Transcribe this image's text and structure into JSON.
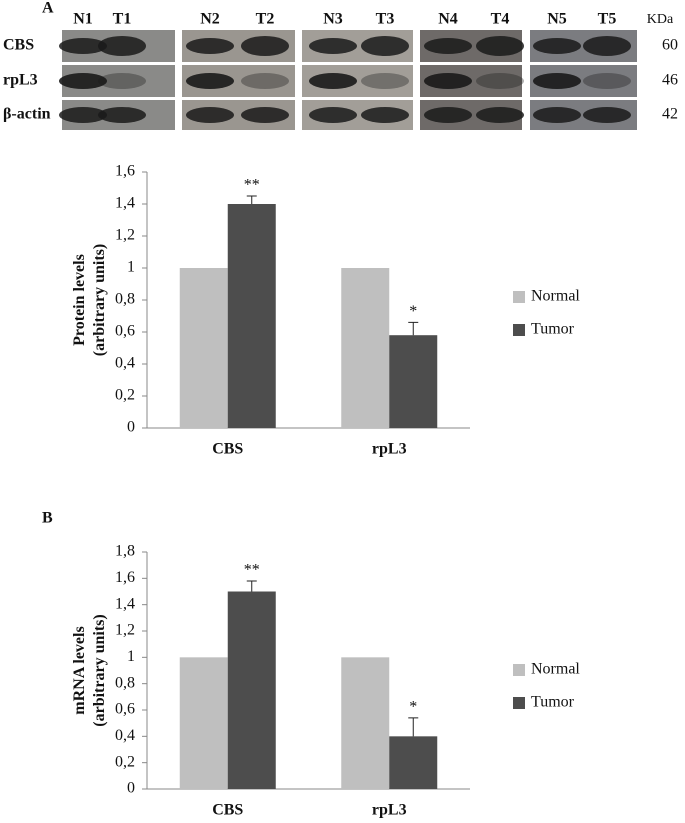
{
  "panel_labels": [
    "A",
    "B"
  ],
  "blot": {
    "lanes": [
      "N1",
      "T1",
      "N2",
      "T2",
      "N3",
      "T3",
      "N4",
      "T4",
      "N5",
      "T5"
    ],
    "rows": [
      "CBS",
      "rpL3",
      "β-actin"
    ],
    "unit": "KDa",
    "sizes": [
      "60",
      "46",
      "42"
    ]
  },
  "chart_data": [
    {
      "type": "bar",
      "ylabel": [
        "Protein levels",
        "(arbitrary units)"
      ],
      "categories": [
        "CBS",
        "rpL3"
      ],
      "series": [
        {
          "name": "Normal",
          "color": "#bfbfbf",
          "values": [
            1,
            1
          ]
        },
        {
          "name": "Tumor",
          "color": "#4d4d4d",
          "values": [
            1.4,
            0.58
          ],
          "errors": [
            0.05,
            0.08
          ],
          "annotations": [
            "**",
            "*"
          ]
        }
      ],
      "ylim": [
        0,
        1.6
      ],
      "yticks": [
        0,
        {
          "value": 0.2,
          "label": "0,2"
        },
        {
          "value": 0.4,
          "label": "0,4"
        },
        {
          "value": 0.6,
          "label": "0,6"
        },
        {
          "value": 0.8,
          "label": "0,8"
        },
        1,
        {
          "value": 1.2,
          "label": "1,2"
        },
        {
          "value": 1.4,
          "label": "1,4"
        },
        {
          "value": 1.6,
          "label": "1,6"
        }
      ],
      "legend": "right"
    },
    {
      "type": "bar",
      "ylabel": [
        "mRNA levels",
        "(arbitrary units)"
      ],
      "categories": [
        "CBS",
        "rpL3"
      ],
      "series": [
        {
          "name": "Normal",
          "color": "#bfbfbf",
          "values": [
            1,
            1
          ]
        },
        {
          "name": "Tumor",
          "color": "#4d4d4d",
          "values": [
            1.5,
            0.4
          ],
          "errors": [
            0.08,
            0.14
          ],
          "annotations": [
            "**",
            "*"
          ]
        }
      ],
      "ylim": [
        0,
        1.8
      ],
      "yticks": [
        0,
        {
          "value": 0.2,
          "label": "0,2"
        },
        {
          "value": 0.4,
          "label": "0,4"
        },
        {
          "value": 0.6,
          "label": "0,6"
        },
        {
          "value": 0.8,
          "label": "0,8"
        },
        1,
        {
          "value": 1.2,
          "label": "1,2"
        },
        {
          "value": 1.4,
          "label": "1,4"
        },
        {
          "value": 1.6,
          "label": "1,6"
        },
        {
          "value": 1.8,
          "label": "1,8"
        }
      ],
      "legend": "right"
    }
  ]
}
